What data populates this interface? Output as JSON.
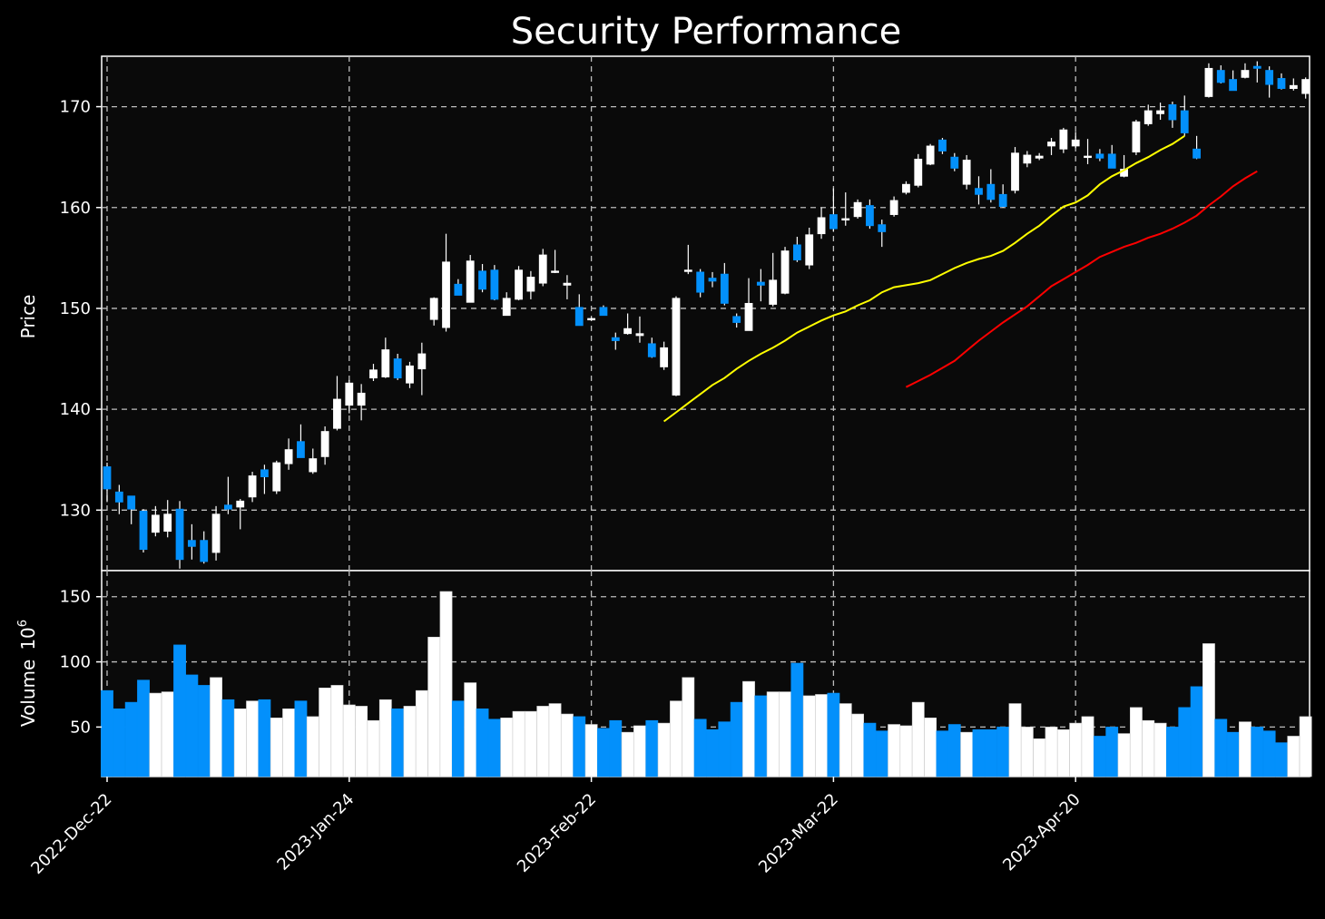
{
  "chart_data": {
    "type": "candlestick",
    "title": "Security Performance",
    "ylabel": "Price",
    "volume_label": "Volume",
    "volume_exponent_label": "10",
    "volume_exponent": "6",
    "x_tick_labels": [
      "2022-Dec-22",
      "2023-Jan-24",
      "2023-Feb-22",
      "2023-Mar-22",
      "2023-Apr-20"
    ],
    "price_ylim": [
      124,
      175
    ],
    "price_yticks": [
      130,
      140,
      150,
      160,
      170
    ],
    "volume_ylim": [
      12,
      170
    ],
    "volume_yticks": [
      50,
      100,
      150
    ],
    "grid": true,
    "colors": {
      "up": "#ffffff",
      "down": "#0390fb",
      "ma_fast": "#ffff00",
      "ma_slow": "#ff0000",
      "background": "#0a0a0a"
    },
    "ohlc": [
      [
        134.3,
        134.7,
        130.8,
        132.1
      ],
      [
        131.8,
        132.5,
        129.6,
        130.8
      ],
      [
        131.4,
        131.4,
        128.6,
        130.1
      ],
      [
        129.9,
        130.1,
        125.8,
        126.1
      ],
      [
        127.8,
        130.4,
        127.4,
        129.5
      ],
      [
        127.9,
        131.0,
        127.3,
        129.6
      ],
      [
        130.1,
        130.9,
        124.2,
        125.1
      ],
      [
        127.0,
        128.6,
        125.1,
        126.4
      ],
      [
        127.0,
        127.9,
        124.7,
        124.9
      ],
      [
        125.8,
        130.4,
        125.0,
        129.6
      ],
      [
        130.5,
        133.3,
        129.6,
        130.1
      ],
      [
        130.3,
        131.1,
        128.1,
        130.9
      ],
      [
        131.3,
        133.8,
        130.8,
        133.4
      ],
      [
        134.0,
        134.5,
        131.6,
        133.3
      ],
      [
        131.9,
        134.9,
        131.6,
        134.7
      ],
      [
        134.6,
        137.1,
        134.0,
        136.0
      ],
      [
        136.8,
        138.5,
        135.2,
        135.2
      ],
      [
        133.8,
        136.1,
        133.6,
        135.1
      ],
      [
        135.3,
        138.3,
        134.5,
        137.8
      ],
      [
        138.1,
        143.3,
        137.9,
        141.0
      ],
      [
        140.4,
        142.9,
        139.6,
        142.6
      ],
      [
        140.4,
        142.5,
        138.9,
        141.6
      ],
      [
        143.1,
        144.5,
        142.8,
        143.9
      ],
      [
        143.2,
        147.1,
        143.1,
        145.9
      ],
      [
        145.0,
        145.5,
        142.9,
        143.1
      ],
      [
        142.6,
        144.7,
        142.1,
        144.3
      ],
      [
        144.0,
        146.6,
        141.4,
        145.5
      ],
      [
        148.9,
        151.1,
        148.3,
        151.0
      ],
      [
        148.1,
        157.4,
        147.7,
        154.6
      ],
      [
        152.4,
        152.9,
        151.3,
        151.3
      ],
      [
        150.6,
        155.3,
        150.6,
        154.7
      ],
      [
        153.7,
        154.4,
        151.6,
        151.9
      ],
      [
        153.8,
        154.3,
        150.8,
        150.9
      ],
      [
        149.3,
        151.6,
        149.3,
        151.0
      ],
      [
        150.9,
        154.2,
        150.8,
        153.8
      ],
      [
        151.7,
        153.7,
        150.9,
        153.1
      ],
      [
        152.5,
        155.9,
        152.2,
        155.3
      ],
      [
        153.6,
        155.8,
        153.5,
        153.7
      ],
      [
        152.3,
        153.3,
        150.9,
        152.5
      ],
      [
        150.1,
        151.4,
        148.3,
        148.3
      ],
      [
        149.0,
        149.1,
        148.8,
        149.0
      ],
      [
        150.1,
        150.3,
        149.3,
        149.3
      ],
      [
        147.1,
        147.6,
        145.9,
        146.8
      ],
      [
        147.5,
        149.5,
        147.4,
        148.0
      ],
      [
        147.3,
        149.2,
        146.6,
        147.5
      ],
      [
        146.5,
        147.1,
        145.1,
        145.2
      ],
      [
        144.2,
        146.7,
        143.9,
        146.1
      ],
      [
        141.4,
        151.2,
        141.3,
        151.0
      ],
      [
        153.7,
        156.3,
        153.4,
        153.8
      ],
      [
        153.6,
        153.9,
        151.1,
        151.6
      ],
      [
        153.0,
        153.6,
        152.1,
        152.7
      ],
      [
        153.4,
        154.5,
        150.3,
        150.5
      ],
      [
        149.2,
        149.5,
        148.1,
        148.6
      ],
      [
        147.8,
        153.0,
        147.8,
        150.5
      ],
      [
        152.6,
        153.9,
        150.7,
        152.3
      ],
      [
        150.4,
        155.5,
        150.2,
        152.8
      ],
      [
        151.5,
        156.1,
        151.4,
        155.7
      ],
      [
        156.3,
        157.1,
        154.6,
        154.8
      ],
      [
        154.3,
        158.0,
        153.9,
        157.3
      ],
      [
        157.4,
        160.0,
        156.9,
        159.0
      ],
      [
        159.3,
        161.9,
        157.6,
        157.9
      ],
      [
        158.8,
        161.5,
        158.2,
        158.9
      ],
      [
        159.1,
        160.8,
        158.9,
        160.5
      ],
      [
        160.2,
        160.8,
        157.9,
        158.2
      ],
      [
        158.3,
        158.8,
        156.1,
        157.6
      ],
      [
        159.3,
        161.1,
        159.1,
        160.7
      ],
      [
        161.5,
        162.6,
        161.3,
        162.3
      ],
      [
        162.2,
        165.3,
        162.0,
        164.8
      ],
      [
        164.3,
        166.3,
        164.2,
        166.1
      ],
      [
        166.7,
        166.9,
        165.3,
        165.6
      ],
      [
        165.0,
        165.4,
        163.6,
        163.9
      ],
      [
        162.3,
        165.2,
        161.8,
        164.7
      ],
      [
        161.9,
        163.1,
        160.3,
        161.3
      ],
      [
        162.3,
        163.8,
        160.5,
        160.8
      ],
      [
        161.3,
        162.3,
        160.0,
        160.1
      ],
      [
        161.7,
        166.0,
        161.4,
        165.4
      ],
      [
        164.4,
        165.6,
        164.0,
        165.2
      ],
      [
        164.9,
        165.4,
        164.7,
        165.1
      ],
      [
        166.1,
        166.9,
        165.2,
        166.5
      ],
      [
        165.8,
        167.9,
        165.4,
        167.7
      ],
      [
        166.1,
        167.5,
        165.9,
        166.7
      ],
      [
        165.0,
        166.8,
        164.3,
        165.1
      ],
      [
        165.3,
        165.8,
        164.6,
        164.9
      ],
      [
        165.3,
        166.2,
        163.9,
        163.9
      ],
      [
        163.1,
        165.2,
        163.0,
        163.8
      ],
      [
        165.5,
        168.7,
        165.2,
        168.5
      ],
      [
        168.3,
        170.2,
        168.1,
        169.6
      ],
      [
        169.3,
        170.4,
        168.7,
        169.6
      ],
      [
        170.2,
        170.5,
        167.9,
        168.7
      ],
      [
        169.6,
        171.1,
        167.1,
        167.4
      ],
      [
        165.8,
        167.1,
        164.8,
        164.9
      ],
      [
        171.0,
        174.3,
        170.9,
        173.8
      ],
      [
        173.6,
        174.1,
        172.3,
        172.4
      ],
      [
        172.7,
        173.6,
        171.6,
        171.6
      ],
      [
        172.9,
        174.3,
        172.8,
        173.6
      ],
      [
        174.0,
        174.5,
        172.4,
        173.8
      ],
      [
        173.6,
        174.0,
        170.9,
        172.2
      ],
      [
        172.8,
        173.3,
        171.7,
        171.8
      ],
      [
        171.8,
        172.8,
        171.6,
        172.1
      ],
      [
        171.3,
        172.9,
        170.8,
        172.7
      ]
    ],
    "volume": [
      78,
      64,
      69,
      86,
      76,
      77,
      113,
      90,
      82,
      88,
      71,
      64,
      70,
      71,
      57,
      64,
      70,
      58,
      80,
      82,
      67,
      66,
      55,
      71,
      64,
      66,
      78,
      119,
      154,
      70,
      84,
      64,
      56,
      57,
      62,
      62,
      66,
      68,
      60,
      58,
      52,
      49,
      55,
      46,
      51,
      55,
      53,
      70,
      88,
      56,
      48,
      54,
      69,
      85,
      74,
      77,
      77,
      99,
      74,
      75,
      76,
      68,
      60,
      53,
      47,
      52,
      51,
      69,
      57,
      47,
      52,
      46,
      48,
      48,
      50,
      68,
      50,
      41,
      50,
      48,
      53,
      58,
      43,
      50,
      45,
      65,
      55,
      53,
      50,
      65,
      81,
      114,
      56,
      46,
      54,
      50,
      47,
      38,
      43,
      58
    ],
    "ma_fast_values": [
      138.8,
      139.7,
      140.6,
      141.5,
      142.4,
      143.1,
      144.0,
      144.8,
      145.5,
      146.1,
      146.8,
      147.6,
      148.2,
      148.8,
      149.3,
      149.7,
      150.3,
      150.8,
      151.6,
      152.1,
      152.3,
      152.5,
      152.8,
      153.4,
      154.0,
      154.5,
      154.9,
      155.2,
      155.7,
      156.5,
      157.4,
      158.2,
      159.2,
      160.1,
      160.5,
      161.2,
      162.3,
      163.1,
      163.7,
      164.4,
      165.0,
      165.7,
      166.3,
      167.1
    ],
    "ma_slow_values": [
      142.2,
      142.8,
      143.4,
      144.1,
      144.8,
      145.8,
      146.8,
      147.7,
      148.6,
      149.4,
      150.2,
      151.2,
      152.2,
      152.9,
      153.6,
      154.3,
      155.1,
      155.6,
      156.1,
      156.5,
      157.0,
      157.4,
      157.9,
      158.5,
      159.2,
      160.2,
      161.1,
      162.1,
      162.9,
      163.6
    ]
  }
}
